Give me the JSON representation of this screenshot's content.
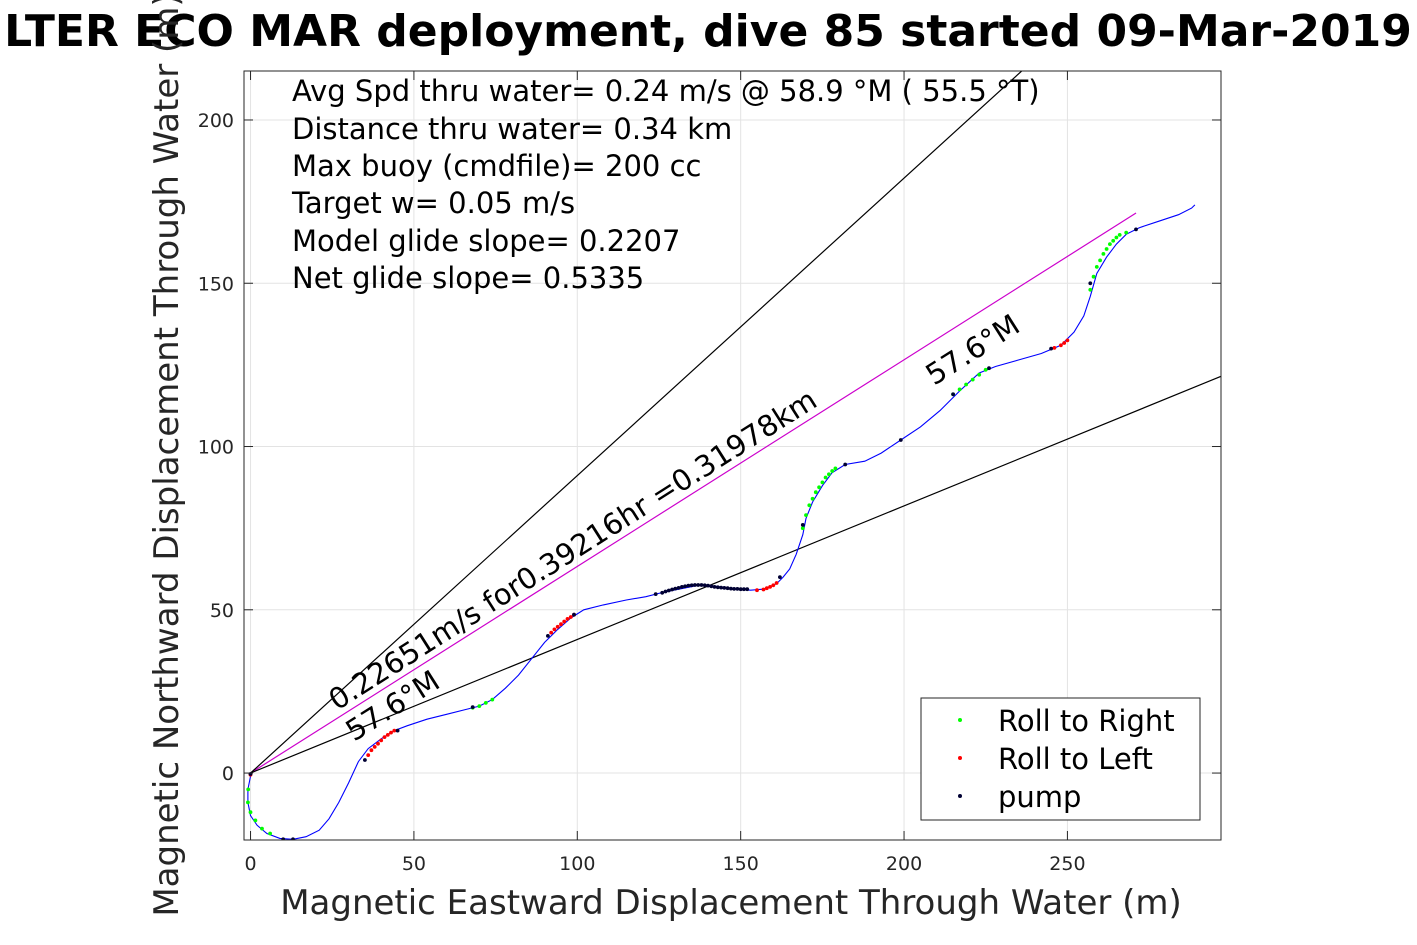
{
  "chart_data": {
    "type": "scatter",
    "title": "LTER ECO MAR deployment, dive 85 started 09-Mar-2019",
    "xlabel": "Magnetic Eastward Displacement Through Water (m)",
    "ylabel": "Magnetic Northward Displacement Through Water (m)",
    "xlim": [
      -2,
      297
    ],
    "ylim": [
      -20.5,
      215
    ],
    "xticks": [
      0,
      50,
      100,
      150,
      200,
      250
    ],
    "yticks": [
      0,
      50,
      100,
      150,
      200
    ],
    "xtick_labels": [
      "0",
      "50",
      "100",
      "150",
      "200",
      "250"
    ],
    "ytick_labels": [
      "0",
      "50",
      "100",
      "150",
      "200"
    ],
    "grid": true,
    "legend_position": "bottom-right",
    "info_lines": [
      "Avg Spd thru water=  0.24 m/s @  58.9 °M ( 55.5 °T)",
      "Distance thru water=  0.34 km",
      "Max buoy (cmdfile)= 200 cc",
      "Target w= 0.05 m/s",
      "Model glide slope= 0.2207",
      "Net glide slope= 0.5335"
    ],
    "annotations": {
      "speed_label": "0.22651m/s for0.39216hr =0.31978km",
      "heading_label_lower": "57.6°M",
      "heading_label_upper": "57.6°M"
    },
    "reference_lines": {
      "net_line": {
        "color": "#cc00cc",
        "from": [
          0,
          0
        ],
        "to": [
          271,
          171.5
        ]
      },
      "upper_envelope": {
        "color": "#000000",
        "from": [
          0,
          0
        ],
        "to": [
          236,
          215
        ]
      },
      "lower_envelope": {
        "color": "#000000",
        "from": [
          0,
          0
        ],
        "to": [
          297,
          121.5
        ]
      }
    },
    "track": {
      "color": "#0000ff",
      "points": [
        [
          0,
          -1
        ],
        [
          -0.8,
          -5
        ],
        [
          -0.8,
          -9
        ],
        [
          0,
          -13
        ],
        [
          2,
          -16
        ],
        [
          5,
          -18.5
        ],
        [
          9,
          -20
        ],
        [
          13,
          -20.3
        ],
        [
          17,
          -19.5
        ],
        [
          21,
          -17.5
        ],
        [
          24,
          -14
        ],
        [
          27,
          -9
        ],
        [
          30,
          -3
        ],
        [
          33,
          3.5
        ],
        [
          36,
          7.5
        ],
        [
          40,
          10.5
        ],
        [
          44,
          13
        ],
        [
          48,
          14.5
        ],
        [
          54,
          16.5
        ],
        [
          60,
          18
        ],
        [
          66,
          19.5
        ],
        [
          70,
          20.5
        ],
        [
          74,
          22.5
        ],
        [
          78,
          26
        ],
        [
          82,
          30
        ],
        [
          86,
          35
        ],
        [
          90,
          40
        ],
        [
          94,
          44
        ],
        [
          98,
          47.5
        ],
        [
          102,
          50
        ],
        [
          108,
          51.5
        ],
        [
          115,
          53
        ],
        [
          121,
          54
        ],
        [
          126,
          55.3
        ],
        [
          132,
          56.5
        ],
        [
          137,
          57.5
        ],
        [
          142,
          57.3
        ],
        [
          147,
          56.5
        ],
        [
          153,
          56
        ],
        [
          157,
          56.3
        ],
        [
          161,
          58
        ],
        [
          163,
          60
        ],
        [
          165,
          62.5
        ],
        [
          167,
          67
        ],
        [
          169,
          73
        ],
        [
          170,
          78
        ],
        [
          172,
          83
        ],
        [
          175,
          88
        ],
        [
          178,
          92
        ],
        [
          182,
          94.5
        ],
        [
          188,
          95.5
        ],
        [
          193,
          98
        ],
        [
          199,
          102
        ],
        [
          205,
          106
        ],
        [
          211,
          111
        ],
        [
          217,
          117
        ],
        [
          223,
          122.5
        ],
        [
          228,
          124.5
        ],
        [
          235,
          126.5
        ],
        [
          242,
          128.5
        ],
        [
          248,
          131
        ],
        [
          252,
          135
        ],
        [
          255,
          140
        ],
        [
          257,
          146
        ],
        [
          259,
          153
        ],
        [
          262,
          158
        ],
        [
          265,
          162
        ],
        [
          268,
          165
        ],
        [
          272,
          167
        ],
        [
          278,
          169
        ],
        [
          284,
          171
        ],
        [
          288,
          173
        ],
        [
          289,
          174
        ]
      ]
    },
    "series": [
      {
        "name": "Roll to Right",
        "color": "#00ff00",
        "points": [
          [
            -0.7,
            -5
          ],
          [
            -0.8,
            -9
          ],
          [
            0,
            -12
          ],
          [
            1.5,
            -14.5
          ],
          [
            3.5,
            -17
          ],
          [
            6,
            -18.5
          ],
          [
            68,
            20
          ],
          [
            70,
            20.5
          ],
          [
            72,
            21.5
          ],
          [
            74,
            22.5
          ],
          [
            169,
            75
          ],
          [
            170,
            79
          ],
          [
            171,
            82
          ],
          [
            172,
            84
          ],
          [
            173,
            86
          ],
          [
            174,
            87.5
          ],
          [
            175,
            89
          ],
          [
            176,
            90.5
          ],
          [
            177,
            91.5
          ],
          [
            178,
            92.5
          ],
          [
            179,
            93.3
          ],
          [
            215,
            116
          ],
          [
            217,
            117.5
          ],
          [
            219,
            119
          ],
          [
            221,
            120.5
          ],
          [
            223,
            122
          ],
          [
            225,
            123.5
          ],
          [
            257,
            148
          ],
          [
            258,
            152
          ],
          [
            259,
            155
          ],
          [
            260,
            157
          ],
          [
            261,
            159
          ],
          [
            262,
            160.5
          ],
          [
            263,
            162
          ],
          [
            264,
            163
          ],
          [
            265,
            164
          ],
          [
            266,
            164.8
          ],
          [
            268,
            165.5
          ]
        ]
      },
      {
        "name": "Roll to Left",
        "color": "#ff0000",
        "points": [
          [
            0,
            -0.5
          ],
          [
            36,
            5.5
          ],
          [
            37,
            7
          ],
          [
            38,
            8
          ],
          [
            39,
            9
          ],
          [
            40,
            10
          ],
          [
            41,
            11
          ],
          [
            42,
            11.7
          ],
          [
            43,
            12.4
          ],
          [
            44,
            13
          ],
          [
            92,
            43
          ],
          [
            93,
            44
          ],
          [
            94,
            44.8
          ],
          [
            95,
            45.6
          ],
          [
            96,
            46.4
          ],
          [
            97,
            47.2
          ],
          [
            98,
            47.8
          ],
          [
            99,
            48.5
          ],
          [
            155,
            56
          ],
          [
            157,
            56.2
          ],
          [
            158,
            56.6
          ],
          [
            159,
            57
          ],
          [
            160,
            57.5
          ],
          [
            161,
            58.2
          ],
          [
            246,
            130.2
          ],
          [
            248,
            131
          ],
          [
            249,
            131.7
          ],
          [
            250,
            132.5
          ]
        ]
      },
      {
        "name": "pump",
        "color": "#000033",
        "points": [
          [
            0,
            -0.3
          ],
          [
            10,
            -20.3
          ],
          [
            13,
            -20.3
          ],
          [
            35,
            4
          ],
          [
            45,
            13
          ],
          [
            68,
            20.2
          ],
          [
            91,
            42
          ],
          [
            99,
            48.5
          ],
          [
            124,
            54.8
          ],
          [
            126,
            55.2
          ],
          [
            127,
            55.6
          ],
          [
            128,
            55.9
          ],
          [
            129,
            56.2
          ],
          [
            130,
            56.5
          ],
          [
            131,
            56.7
          ],
          [
            132,
            57
          ],
          [
            133,
            57.2
          ],
          [
            134,
            57.4
          ],
          [
            135,
            57.5
          ],
          [
            136,
            57.6
          ],
          [
            137,
            57.6
          ],
          [
            138,
            57.6
          ],
          [
            139,
            57.5
          ],
          [
            140,
            57.4
          ],
          [
            141,
            57.2
          ],
          [
            142,
            57
          ],
          [
            143,
            56.9
          ],
          [
            144,
            56.8
          ],
          [
            145,
            56.7
          ],
          [
            146,
            56.6
          ],
          [
            147,
            56.5
          ],
          [
            148,
            56.4
          ],
          [
            149,
            56.4
          ],
          [
            150,
            56.3
          ],
          [
            151,
            56.3
          ],
          [
            152,
            56.3
          ],
          [
            162,
            60
          ],
          [
            169,
            76
          ],
          [
            182,
            94.5
          ],
          [
            199,
            102
          ],
          [
            215,
            116
          ],
          [
            226,
            124
          ],
          [
            245,
            130
          ],
          [
            257,
            150
          ],
          [
            271,
            166.5
          ]
        ]
      }
    ]
  }
}
